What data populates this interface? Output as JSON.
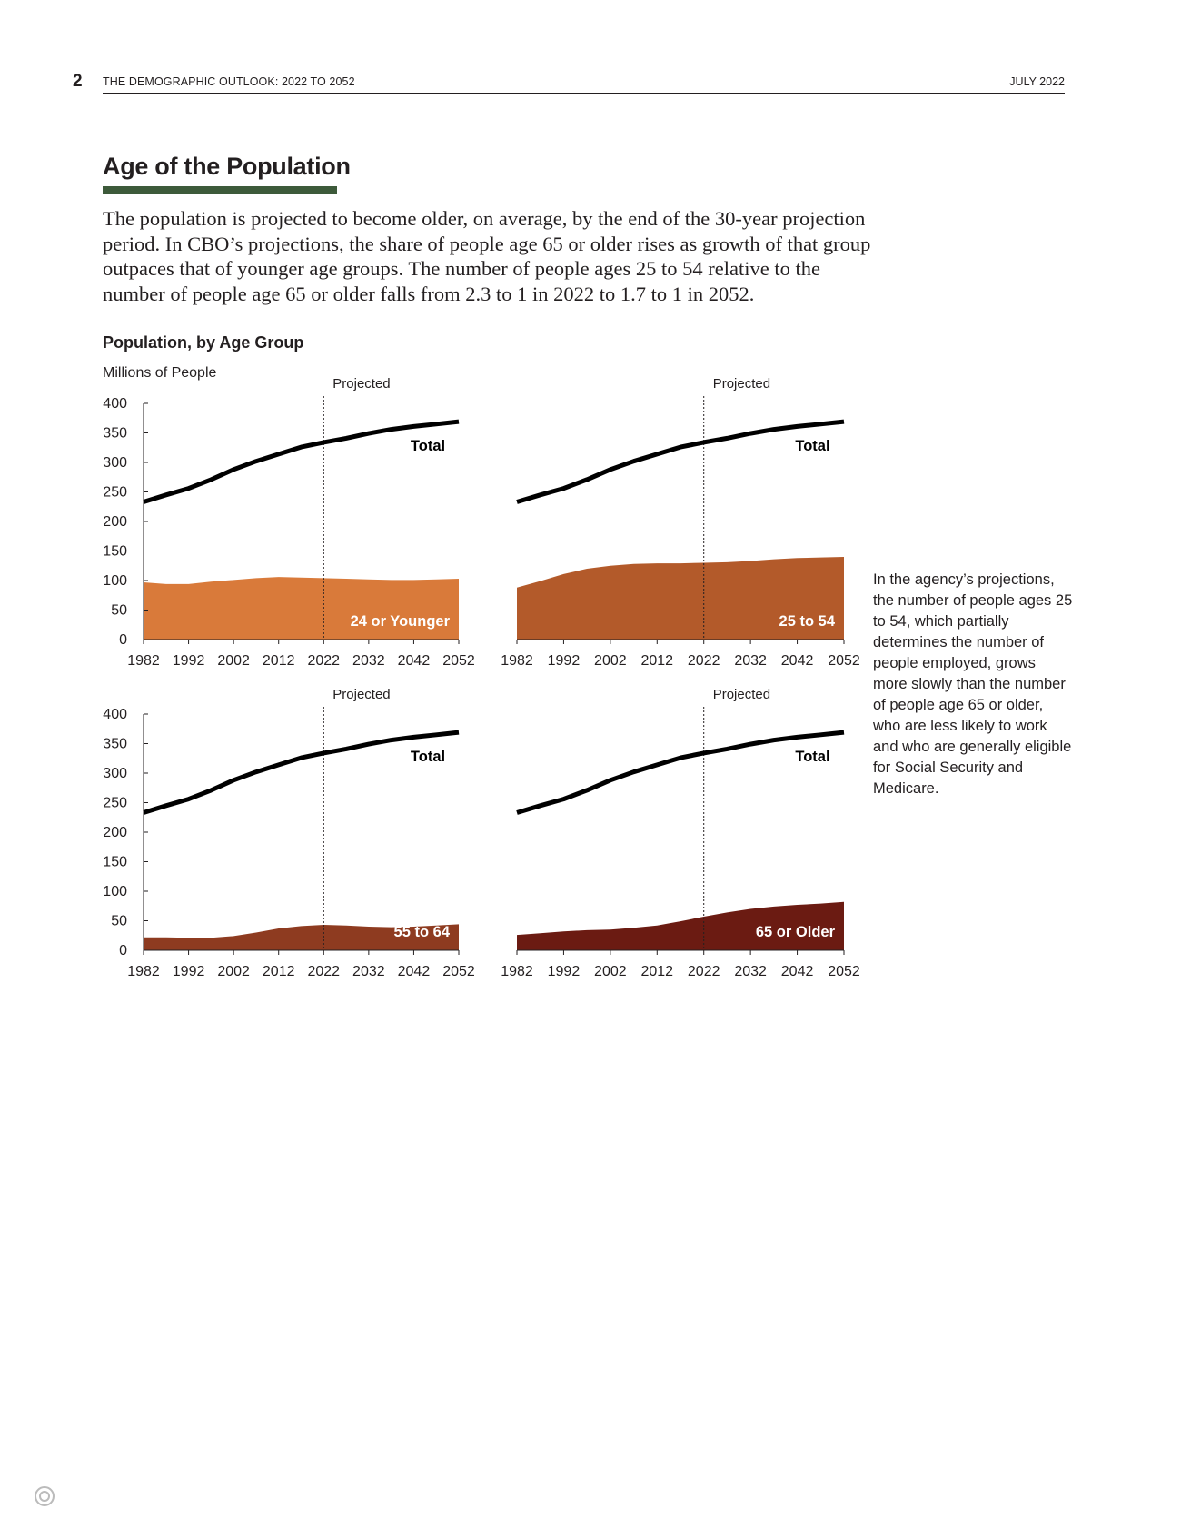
{
  "header": {
    "page_number": "2",
    "doc_title": "THE DEMOGRAPHIC OUTLOOK: 2022 TO 2052",
    "date": "JULY 2022"
  },
  "section": {
    "title": "Age of the Population",
    "intro": "The population is projected to become older, on average, by the end of the 30-year projection period. In CBO’s projections, the share of people age 65 or older rises as growth of that group outpaces that of younger age groups. The number of people ages 25 to 54 relative to the number of people age 65 or older falls from 2.3 to 1 in 2022 to 1.7 to 1 in 2052."
  },
  "figure": {
    "title": "Population, by Age Group",
    "units": "Millions of People",
    "note": "In the agency’s projections, the number of people ages 25 to 54, which partially determines the number of people employed, grows more slowly than the number of people age 65 or older, who are less likely to work and who are generally eligible for Social Security and Medicare."
  },
  "colors": {
    "total_line": "#000000",
    "age_24_or_younger": "#d97a3a",
    "age_25_to_54": "#b35a2a",
    "age_55_to_64": "#8e3b20",
    "age_65_or_older": "#6b1b12",
    "section_bar": "#3d5a3a"
  },
  "chart_data": [
    {
      "type": "area",
      "panel": "top-left",
      "x": [
        1982,
        1987,
        1992,
        1997,
        2002,
        2007,
        2012,
        2017,
        2022,
        2027,
        2032,
        2037,
        2042,
        2047,
        2052
      ],
      "series": [
        {
          "name": "Total",
          "values": [
            233,
            245,
            256,
            271,
            288,
            302,
            314,
            326,
            334,
            341,
            349,
            356,
            361,
            365,
            369
          ]
        },
        {
          "name": "24 or Younger",
          "values": [
            97,
            94,
            94,
            98,
            101,
            104,
            106,
            105,
            104,
            103,
            102,
            101,
            101,
            102,
            103
          ]
        }
      ],
      "area_label": "24 or Younger",
      "line_label": "Total",
      "projection_start": 2022,
      "projection_label": "Projected",
      "ylim": [
        0,
        400
      ],
      "y_ticks": [
        0,
        50,
        100,
        150,
        200,
        250,
        300,
        350,
        400
      ],
      "x_ticks": [
        1982,
        1992,
        2002,
        2012,
        2022,
        2032,
        2042,
        2052
      ],
      "ylabel": "Millions of People"
    },
    {
      "type": "area",
      "panel": "top-right",
      "x": [
        1982,
        1987,
        1992,
        1997,
        2002,
        2007,
        2012,
        2017,
        2022,
        2027,
        2032,
        2037,
        2042,
        2047,
        2052
      ],
      "series": [
        {
          "name": "Total",
          "values": [
            233,
            245,
            256,
            271,
            288,
            302,
            314,
            326,
            334,
            341,
            349,
            356,
            361,
            365,
            369
          ]
        },
        {
          "name": "25 to 54",
          "values": [
            88,
            99,
            111,
            120,
            125,
            128,
            129,
            129,
            130,
            131,
            133,
            136,
            138,
            139,
            140
          ]
        }
      ],
      "area_label": "25 to 54",
      "line_label": "Total",
      "projection_start": 2022,
      "projection_label": "Projected",
      "ylim": [
        0,
        400
      ],
      "x_ticks": [
        1982,
        1992,
        2002,
        2012,
        2022,
        2032,
        2042,
        2052
      ]
    },
    {
      "type": "area",
      "panel": "bottom-left",
      "x": [
        1982,
        1987,
        1992,
        1997,
        2002,
        2007,
        2012,
        2017,
        2022,
        2027,
        2032,
        2037,
        2042,
        2047,
        2052
      ],
      "series": [
        {
          "name": "Total",
          "values": [
            233,
            245,
            256,
            271,
            288,
            302,
            314,
            326,
            334,
            341,
            349,
            356,
            361,
            365,
            369
          ]
        },
        {
          "name": "55 to 64",
          "values": [
            22,
            22,
            21,
            21,
            24,
            30,
            37,
            41,
            43,
            42,
            40,
            39,
            40,
            42,
            44
          ]
        }
      ],
      "area_label": "55 to 64",
      "line_label": "Total",
      "projection_start": 2022,
      "projection_label": "Projected",
      "ylim": [
        0,
        400
      ],
      "y_ticks": [
        0,
        50,
        100,
        150,
        200,
        250,
        300,
        350,
        400
      ],
      "x_ticks": [
        1982,
        1992,
        2002,
        2012,
        2022,
        2032,
        2042,
        2052
      ]
    },
    {
      "type": "area",
      "panel": "bottom-right",
      "x": [
        1982,
        1987,
        1992,
        1997,
        2002,
        2007,
        2012,
        2017,
        2022,
        2027,
        2032,
        2037,
        2042,
        2047,
        2052
      ],
      "series": [
        {
          "name": "Total",
          "values": [
            233,
            245,
            256,
            271,
            288,
            302,
            314,
            326,
            334,
            341,
            349,
            356,
            361,
            365,
            369
          ]
        },
        {
          "name": "65 or Older",
          "values": [
            26,
            29,
            32,
            34,
            35,
            38,
            42,
            49,
            57,
            64,
            70,
            74,
            77,
            79,
            82
          ]
        }
      ],
      "area_label": "65 or Older",
      "line_label": "Total",
      "projection_start": 2022,
      "projection_label": "Projected",
      "ylim": [
        0,
        400
      ],
      "x_ticks": [
        1982,
        1992,
        2002,
        2012,
        2022,
        2032,
        2042,
        2052
      ]
    }
  ]
}
